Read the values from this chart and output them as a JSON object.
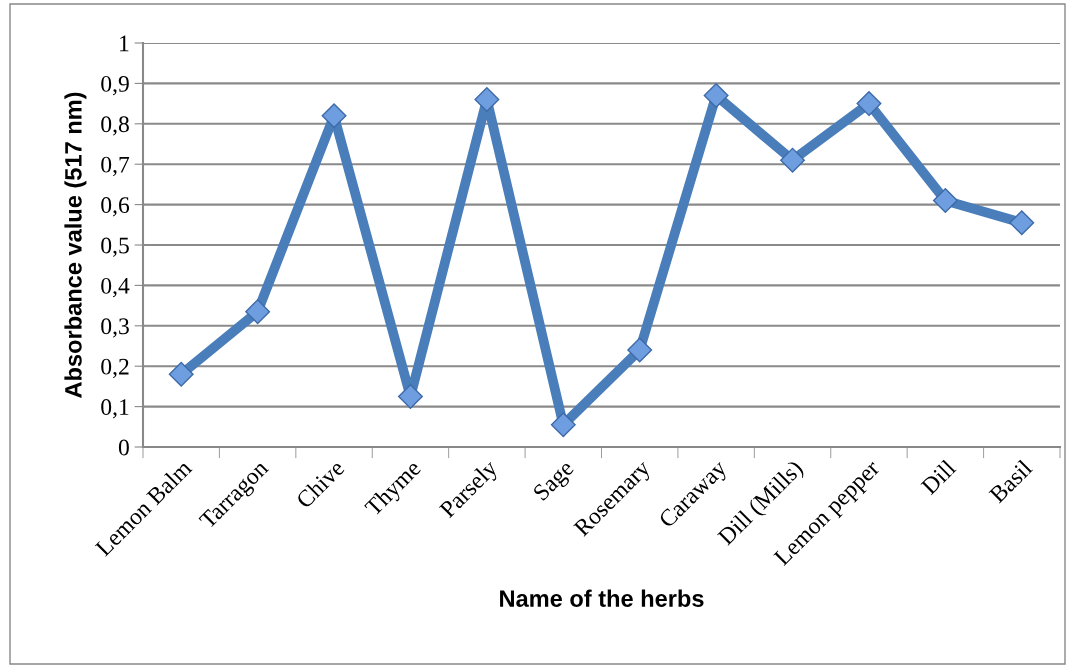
{
  "chart_data": {
    "type": "line",
    "xlabel": "Name of the herbs",
    "ylabel": "Absorbance value (517 nm)",
    "categories": [
      "Lemon Balm",
      "Tarragon",
      "Chive",
      "Thyme",
      "Parsely",
      "Sage",
      "Rosemary",
      "Caraway",
      "Dill (Mills)",
      "Lemon pepper",
      "Dill",
      "Basil"
    ],
    "series": [
      {
        "color": "#4a7ebb",
        "values": [
          0.18,
          0.335,
          0.82,
          0.125,
          0.86,
          0.055,
          0.24,
          0.87,
          0.71,
          0.85,
          0.61,
          0.555
        ]
      }
    ],
    "ylim": [
      0,
      1
    ],
    "yticks": [
      0,
      {
        "value": 0.1,
        "label": "0,1"
      },
      {
        "value": 0.2,
        "label": "0,2"
      },
      {
        "value": 0.3,
        "label": "0,3"
      },
      {
        "value": 0.4,
        "label": "0,4"
      },
      {
        "value": 0.5,
        "label": "0,5"
      },
      {
        "value": 0.6,
        "label": "0,6"
      },
      {
        "value": 0.7,
        "label": "0,7"
      },
      {
        "value": 0.8,
        "label": "0,8"
      },
      {
        "value": 0.9,
        "label": "0,9"
      },
      1
    ],
    "grid": "y",
    "marker": "diamond",
    "line_style": "solid",
    "legend": false
  }
}
